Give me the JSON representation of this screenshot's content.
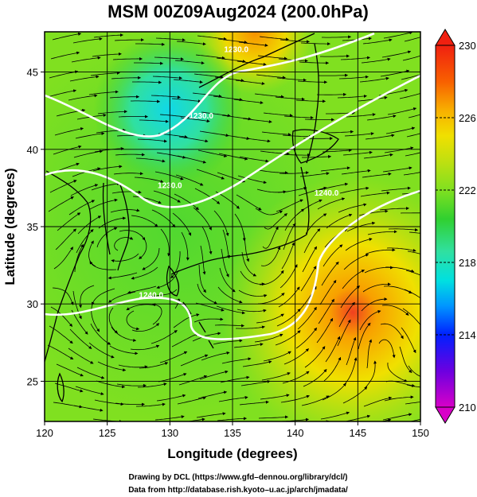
{
  "title": "MSM 00Z09Aug2024 (200.0hPa)",
  "x_axis": {
    "label": "Longitude (degrees)",
    "ticks": [
      "120",
      "125",
      "130",
      "135",
      "140",
      "145",
      "150"
    ],
    "values": [
      120,
      125,
      130,
      135,
      140,
      145,
      150
    ],
    "range": [
      120,
      150
    ]
  },
  "y_axis": {
    "label": "Latitude  (degrees)",
    "ticks": [
      "25",
      "30",
      "35",
      "40",
      "45"
    ],
    "values": [
      25,
      30,
      35,
      40,
      45
    ],
    "range": [
      22.4,
      47.6
    ]
  },
  "colorbar": {
    "ticks": [
      "230",
      "226",
      "222",
      "218",
      "214",
      "210"
    ],
    "values": [
      230,
      226,
      222,
      218,
      214,
      210
    ],
    "range": [
      210,
      230
    ],
    "colors": [
      "#d800c8",
      "#6c00e0",
      "#0020ff",
      "#0096ff",
      "#00e0e0",
      "#30e0a0",
      "#30d030",
      "#80e020",
      "#c0e010",
      "#f0e000",
      "#f8b000",
      "#f86000",
      "#f02010"
    ]
  },
  "contours": [
    {
      "label": "1230.0",
      "lon": 135.3,
      "lat": 46.3
    },
    {
      "label": "1230.0",
      "lon": 132.5,
      "lat": 42.0
    },
    {
      "label": "1230.0",
      "lon": 130.0,
      "lat": 37.5
    },
    {
      "label": "1240.0",
      "lon": 142.5,
      "lat": 37.0
    },
    {
      "label": "1240.0",
      "lon": 128.5,
      "lat": 30.4
    }
  ],
  "credits": {
    "line1": "Drawing by DCL (https://www.gfd–dennou.org/library/dcl/)",
    "line2": "Data from http://database.rish.kyoto–u.ac.jp/arch/jmadata/"
  }
}
